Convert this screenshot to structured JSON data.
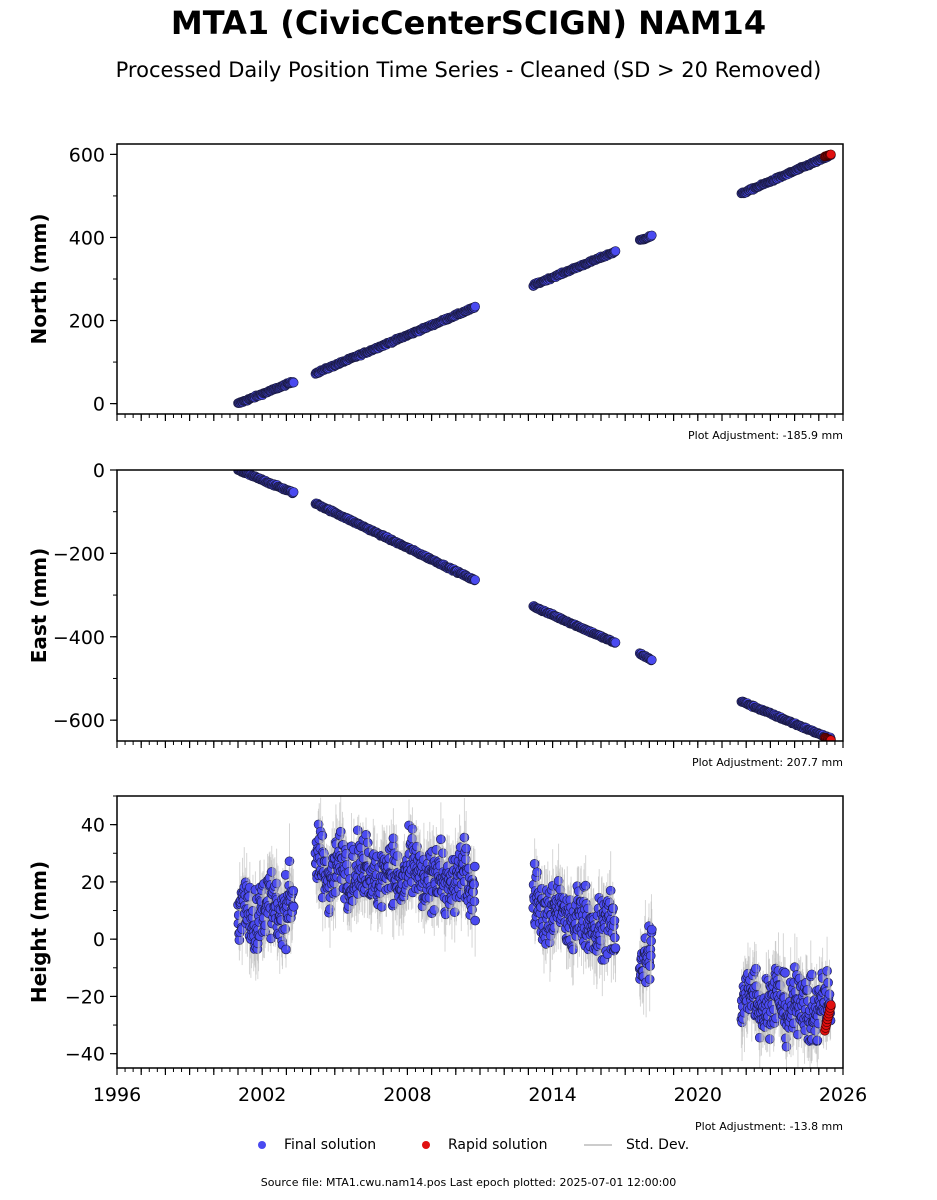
{
  "figure": {
    "title": "MTA1 (CivicCenterSCIGN) NAM14",
    "subtitle": "Processed Daily Position Time Series - Cleaned (SD > 20 Removed)",
    "footer": "Source file: MTA1.cwu.nam14.pos  Last epoch plotted: 2025-07-01 12:00:00",
    "legend": {
      "final": "Final solution",
      "rapid": "Rapid solution",
      "std": "Std. Dev."
    },
    "colors": {
      "final": "#4a4af0",
      "rapid": "#e01010",
      "std": "#bbbbbb"
    }
  },
  "chart_data": [
    {
      "type": "scatter",
      "panel": "north",
      "ylabel": "North (mm)",
      "note": "Plot Adjustment: -185.9 mm",
      "xlim": [
        1996,
        2026
      ],
      "ylim": [
        -25,
        625
      ],
      "yticks": [
        0,
        200,
        400,
        600
      ],
      "xticks": [
        1996,
        2002,
        2008,
        2014,
        2020,
        2026
      ],
      "show_xtick_labels": false,
      "segments": [
        {
          "x": [
            2001.0,
            2003.3
          ],
          "y": [
            0,
            53
          ]
        },
        {
          "x": [
            2004.2,
            2010.8
          ],
          "y": [
            73,
            232
          ]
        },
        {
          "x": [
            2013.2,
            2016.6
          ],
          "y": [
            285,
            366
          ]
        },
        {
          "x": [
            2017.6,
            2018.1
          ],
          "y": [
            393,
            404
          ]
        },
        {
          "x": [
            2021.8,
            2025.5
          ],
          "y": [
            505,
            598
          ]
        }
      ],
      "rapid": {
        "x": [
          2025.25,
          2025.5
        ],
        "y": [
          595,
          600
        ]
      },
      "noise": 3
    },
    {
      "type": "scatter",
      "panel": "east",
      "ylabel": "East (mm)",
      "note": "Plot Adjustment: 207.7 mm",
      "xlim": [
        1996,
        2026
      ],
      "ylim": [
        -650,
        0
      ],
      "yticks": [
        0,
        -200,
        -400,
        -600
      ],
      "xticks": [
        1996,
        2002,
        2008,
        2014,
        2020,
        2026
      ],
      "show_xtick_labels": false,
      "segments": [
        {
          "x": [
            2001.0,
            2003.3
          ],
          "y": [
            0,
            -55
          ]
        },
        {
          "x": [
            2004.2,
            2010.8
          ],
          "y": [
            -80,
            -265
          ]
        },
        {
          "x": [
            2013.2,
            2016.6
          ],
          "y": [
            -327,
            -415
          ]
        },
        {
          "x": [
            2017.6,
            2018.1
          ],
          "y": [
            -440,
            -456
          ]
        },
        {
          "x": [
            2021.8,
            2025.5
          ],
          "y": [
            -555,
            -645
          ]
        }
      ],
      "rapid": {
        "x": [
          2025.25,
          2025.5
        ],
        "y": [
          -642,
          -648
        ]
      },
      "noise": 3
    },
    {
      "type": "scatter",
      "panel": "height",
      "ylabel": "Height (mm)",
      "note": "Plot Adjustment: -13.8 mm",
      "xlim": [
        1996,
        2026
      ],
      "ylim": [
        -45,
        50
      ],
      "yticks": [
        40,
        20,
        0,
        -20,
        -40
      ],
      "xticks": [
        1996,
        2002,
        2008,
        2014,
        2020,
        2026
      ],
      "xticklabels": [
        "1996",
        "2002",
        "2008",
        "2014",
        "2020",
        "2026"
      ],
      "show_xtick_labels": true,
      "segments": [
        {
          "x": [
            2001.0,
            2003.3
          ],
          "y": [
            8,
            12
          ]
        },
        {
          "x": [
            2004.2,
            2010.8
          ],
          "y": [
            25,
            20
          ]
        },
        {
          "x": [
            2013.2,
            2016.6
          ],
          "y": [
            12,
            2
          ]
        },
        {
          "x": [
            2017.6,
            2018.1
          ],
          "y": [
            -5,
            -5
          ]
        },
        {
          "x": [
            2021.8,
            2025.5
          ],
          "y": [
            -20,
            -25
          ]
        }
      ],
      "rapid": {
        "x": [
          2025.25,
          2025.5
        ],
        "y": [
          -32,
          -23
        ]
      },
      "noise": 9
    }
  ]
}
